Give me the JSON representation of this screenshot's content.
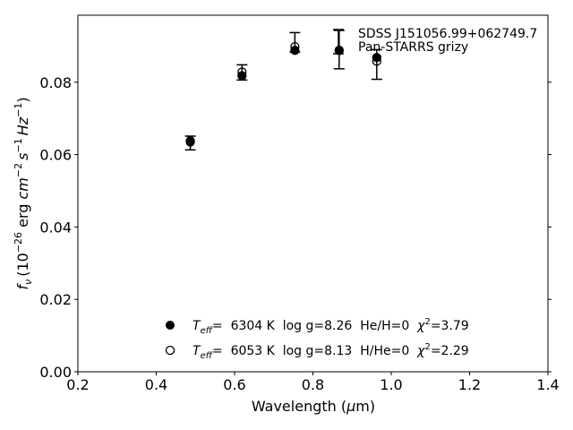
{
  "chart_data": {
    "type": "scatter",
    "xlabel_main": "Wavelength (",
    "xlabel_greek": "μ",
    "xlabel_tail": "m)",
    "ylabel_f": "f",
    "ylabel_sub": "ν",
    "ylabel_unit": "(10",
    "ylabel_exp1": "−26",
    "ylabel_erg": " erg ",
    "ylabel_cm": "cm",
    "ylabel_exp2": "−2",
    "ylabel_s": "s",
    "ylabel_exp3": "−1",
    "ylabel_hz": "Hz",
    "ylabel_exp4": "−1",
    "ylabel_close": ")",
    "xlim": [
      0.2,
      1.4
    ],
    "ylim": [
      0.0,
      0.0985
    ],
    "x_ticks": [
      0.2,
      0.4,
      0.6,
      0.8,
      1.0,
      1.2,
      1.4
    ],
    "x_tick_labels": [
      "0.2",
      "0.4",
      "0.6",
      "0.8",
      "1.0",
      "1.2",
      "1.4"
    ],
    "y_ticks": [
      0.0,
      0.02,
      0.04,
      0.06,
      0.08
    ],
    "y_tick_labels": [
      "0.00",
      "0.02",
      "0.04",
      "0.06",
      "0.08"
    ],
    "grid": false,
    "legend": {
      "position": "top-right",
      "label1": "SDSS J151056.99+062749.7",
      "label2": "Pan-STARRS grizy"
    },
    "observed": [
      {
        "x": 0.487,
        "y": 0.0632,
        "yerr": 0.0019
      },
      {
        "x": 0.619,
        "y": 0.0827,
        "yerr": 0.0021
      },
      {
        "x": 0.754,
        "y": 0.091,
        "yerr": 0.0027
      },
      {
        "x": 0.867,
        "y": 0.089,
        "yerr": 0.0053
      },
      {
        "x": 0.963,
        "y": 0.0849,
        "yerr": 0.0041
      }
    ],
    "series": [
      {
        "name": "He/H=0 model",
        "marker": "filled",
        "x": [
          0.487,
          0.619,
          0.754,
          0.867,
          0.963
        ],
        "y": [
          0.0638,
          0.0818,
          0.0888,
          0.0888,
          0.0868
        ]
      },
      {
        "name": "H/He=0 model",
        "marker": "open",
        "x": [
          0.487,
          0.619,
          0.754,
          0.867,
          0.963
        ],
        "y": [
          0.0635,
          0.0828,
          0.0898,
          0.0888,
          0.0858
        ]
      }
    ],
    "annotations": [
      {
        "marker": "filled",
        "t": "T",
        "eff": "eff",
        "text": "=  6304 K  log g=8.26  He/H=0  ",
        "chi": "χ",
        "sq": "2",
        "chival": "=3.79"
      },
      {
        "marker": "open",
        "t": "T",
        "eff": "eff",
        "text": "=  6053 K  log g=8.13  H/He=0  ",
        "chi": "χ",
        "sq": "2",
        "chival": "=2.29"
      }
    ],
    "colors": {
      "marker": "#000000",
      "axes": "#000000",
      "background": "#ffffff"
    }
  }
}
